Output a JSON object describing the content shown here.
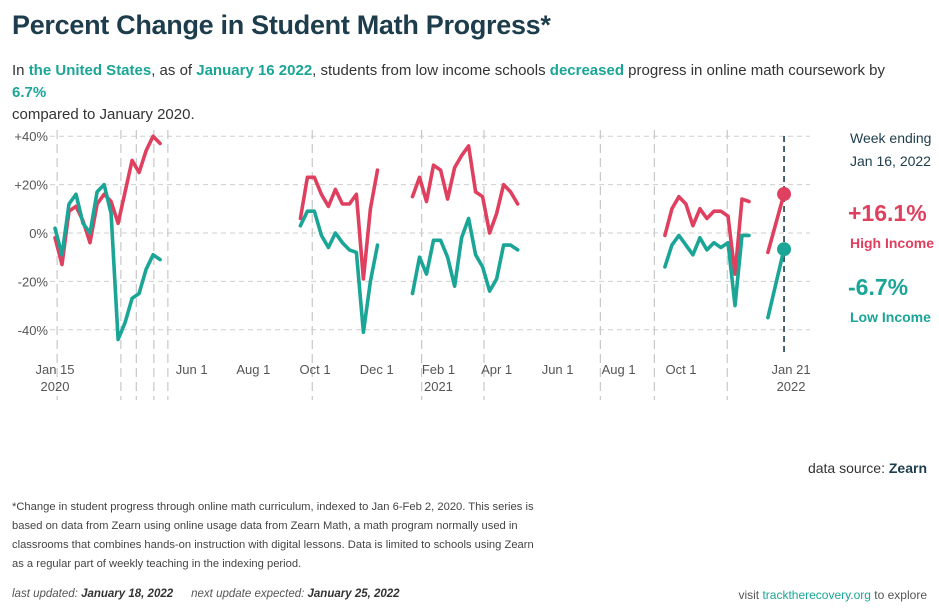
{
  "title": "Percent Change in Student Math Progress*",
  "subtitle": {
    "p1": "In ",
    "place": "the United States",
    "p2": ", as of ",
    "date": "January 16 2022",
    "p3": ", students from low income schools ",
    "direction": "decreased",
    "p4": " progress in online math coursework by ",
    "pct": "6.7%",
    "p5": " compared to January 2020."
  },
  "annotation": {
    "week_ending_line1": "Week ending",
    "week_ending_line2": "Jan 16, 2022",
    "high_value": "+16.1%",
    "high_label": "High Income",
    "low_value": "-6.7%",
    "low_label": "Low Income"
  },
  "source": {
    "label": "data source: ",
    "name": "Zearn"
  },
  "footnote": "*Change in student progress through online math curriculum, indexed to Jan 6-Feb 2, 2020. This series is based on data from Zearn using online usage data from Zearn Math, a math program normally used in classrooms that combines hands-on instruction with digital lessons. Data is limited to schools using Zearn as a regular part of weekly teaching in the indexing period.",
  "footer": {
    "last_updated_label": "last updated: ",
    "last_updated": "January 18, 2022",
    "next_update_label": "next update expected: ",
    "next_update": "January 25, 2022",
    "visit_pre": "visit ",
    "visit_link": "tracktherecovery.org",
    "visit_post": " to explore"
  },
  "colors": {
    "high": "#e0405f",
    "low": "#1aa597",
    "grid": "#cccccc",
    "title": "#1d3d4c"
  },
  "chart_data": {
    "type": "line",
    "x_unit": "weeks since Jan 15 2020",
    "y_unit": "percent",
    "ylim": [
      -48,
      42
    ],
    "xlim": [
      0,
      104
    ],
    "y_ticks": [
      {
        "v": 40,
        "label": "+40%"
      },
      {
        "v": 20,
        "label": "+20%"
      },
      {
        "v": 0,
        "label": "0%"
      },
      {
        "v": -20,
        "label": "-20%"
      },
      {
        "v": -40,
        "label": "-40%"
      }
    ],
    "x_ticks": [
      {
        "w": 0,
        "label": "Jan 15",
        "sub": "2020"
      },
      {
        "w": 19.5,
        "label": "Jun 1",
        "sub": ""
      },
      {
        "w": 28.3,
        "label": "Aug 1",
        "sub": ""
      },
      {
        "w": 37.1,
        "label": "Oct 1",
        "sub": ""
      },
      {
        "w": 45.9,
        "label": "Dec 1",
        "sub": ""
      },
      {
        "w": 54.7,
        "label": "Feb 1",
        "sub": "2021"
      },
      {
        "w": 63.0,
        "label": "Apr 1",
        "sub": ""
      },
      {
        "w": 71.7,
        "label": "Jun 1",
        "sub": ""
      },
      {
        "w": 80.4,
        "label": "Aug 1",
        "sub": ""
      },
      {
        "w": 89.3,
        "label": "Oct 1",
        "sub": ""
      },
      {
        "w": 105.0,
        "label": "Jan 21",
        "sub": "2022"
      }
    ],
    "event_lines": [
      0.3,
      9.4,
      11.6,
      14.1,
      16.1,
      36.7,
      52.3,
      61.2,
      77.8,
      85.5,
      95.9
    ],
    "marker_week": 104,
    "series": [
      {
        "name": "High Income",
        "color": "#e0405f",
        "segments": [
          {
            "start": 0,
            "values": [
              -2,
              -13,
              9,
              11,
              5,
              -4,
              12,
              16,
              13,
              4,
              17,
              30,
              25,
              34,
              40,
              37
            ]
          },
          {
            "start": 35,
            "values": [
              6,
              23,
              23,
              16,
              11,
              18,
              12,
              12,
              16,
              -19,
              10,
              26
            ]
          },
          {
            "start": 51,
            "values": [
              15,
              23,
              13,
              28,
              26,
              14,
              27,
              32,
              36,
              17,
              15,
              0,
              8,
              20,
              17,
              12
            ]
          },
          {
            "start": 87,
            "values": [
              -1,
              10,
              15,
              12,
              3,
              10,
              6,
              9,
              9,
              7,
              -17,
              14,
              13
            ]
          },
          {
            "start": 101.7,
            "values": [
              -8,
              16.1
            ]
          }
        ]
      },
      {
        "name": "Low Income",
        "color": "#1aa597",
        "segments": [
          {
            "start": 0,
            "values": [
              2,
              -9,
              12,
              16,
              4,
              0,
              17,
              20,
              8,
              -44,
              -37,
              -27,
              -25,
              -15,
              -9,
              -11
            ]
          },
          {
            "start": 35,
            "values": [
              3,
              9,
              9,
              -1,
              -6,
              0,
              -4,
              -7,
              -8,
              -41,
              -20,
              -5
            ]
          },
          {
            "start": 51,
            "values": [
              -25,
              -10,
              -17,
              -3,
              -3,
              -10,
              -22,
              -2,
              6,
              -9,
              -14,
              -24,
              -19,
              -5,
              -5,
              -7
            ]
          },
          {
            "start": 87,
            "values": [
              -14,
              -5,
              -1,
              -5,
              -9,
              -2,
              -7,
              -4,
              -6,
              -4,
              -30,
              -1,
              -1
            ]
          },
          {
            "start": 101.7,
            "values": [
              -35,
              -6.7
            ]
          }
        ]
      }
    ]
  }
}
